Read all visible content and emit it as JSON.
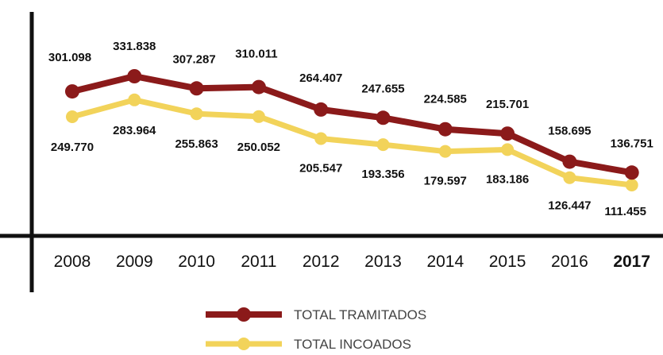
{
  "chart_data": {
    "type": "line",
    "categories": [
      "2008",
      "2009",
      "2010",
      "2011",
      "2012",
      "2013",
      "2014",
      "2015",
      "2016",
      "2017"
    ],
    "highlight_category": "2017",
    "series": [
      {
        "name": "TOTAL TRAMITADOS",
        "color": "#8b1a1a",
        "values": [
          301098,
          331838,
          307287,
          310011,
          264407,
          247655,
          224585,
          215701,
          158695,
          136751
        ],
        "labels": [
          "301.098",
          "331.838",
          "307.287",
          "310.011",
          "264.407",
          "247.655",
          "224.585",
          "215.701",
          "158.695",
          "136.751"
        ]
      },
      {
        "name": "TOTAL INCOADOS",
        "color": "#f2d35a",
        "values": [
          249770,
          283964,
          255863,
          250052,
          205547,
          193356,
          179597,
          183186,
          126447,
          111455
        ],
        "labels": [
          "249.770",
          "283.964",
          "255.863",
          "250.052",
          "205.547",
          "193.356",
          "179.597",
          "183.186",
          "126.447",
          "111.455"
        ]
      }
    ],
    "legend": {
      "position": "bottom-center"
    },
    "grid": false
  }
}
